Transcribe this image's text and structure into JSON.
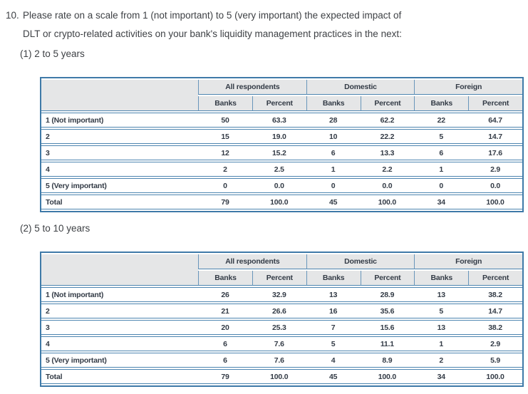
{
  "question": {
    "number": "10.",
    "line1": "Please rate on a scale from 1 (not important) to 5 (very important) the expected impact of",
    "line2": "DLT or crypto-related activities on your bank's liquidity management practices in the next:"
  },
  "table_headers": {
    "groups": [
      "All respondents",
      "Domestic",
      "Foreign"
    ],
    "sub": [
      "Banks",
      "Percent"
    ]
  },
  "sections": [
    {
      "label": "(1) 2 to 5 years",
      "rows": [
        [
          "1 (Not important)",
          "50",
          "63.3",
          "28",
          "62.2",
          "22",
          "64.7"
        ],
        [
          "2",
          "15",
          "19.0",
          "10",
          "22.2",
          "5",
          "14.7"
        ],
        [
          "3",
          "12",
          "15.2",
          "6",
          "13.3",
          "6",
          "17.6"
        ],
        [
          "4",
          "2",
          "2.5",
          "1",
          "2.2",
          "1",
          "2.9"
        ],
        [
          "5 (Very important)",
          "0",
          "0.0",
          "0",
          "0.0",
          "0",
          "0.0"
        ],
        [
          "Total",
          "79",
          "100.0",
          "45",
          "100.0",
          "34",
          "100.0"
        ]
      ]
    },
    {
      "label": "(2) 5 to 10 years",
      "rows": [
        [
          "1 (Not important)",
          "26",
          "32.9",
          "13",
          "28.9",
          "13",
          "38.2"
        ],
        [
          "2",
          "21",
          "26.6",
          "16",
          "35.6",
          "5",
          "14.7"
        ],
        [
          "3",
          "20",
          "25.3",
          "7",
          "15.6",
          "13",
          "38.2"
        ],
        [
          "4",
          "6",
          "7.6",
          "5",
          "11.1",
          "1",
          "2.9"
        ],
        [
          "5 (Very important)",
          "6",
          "7.6",
          "4",
          "8.9",
          "2",
          "5.9"
        ],
        [
          "Total",
          "79",
          "100.0",
          "45",
          "100.0",
          "34",
          "100.0"
        ]
      ]
    }
  ],
  "colors": {
    "table_border": "#3f7aa8",
    "row_line": "#4d85b0",
    "header_bg": "#e5e6e7",
    "text": "#333b46"
  }
}
